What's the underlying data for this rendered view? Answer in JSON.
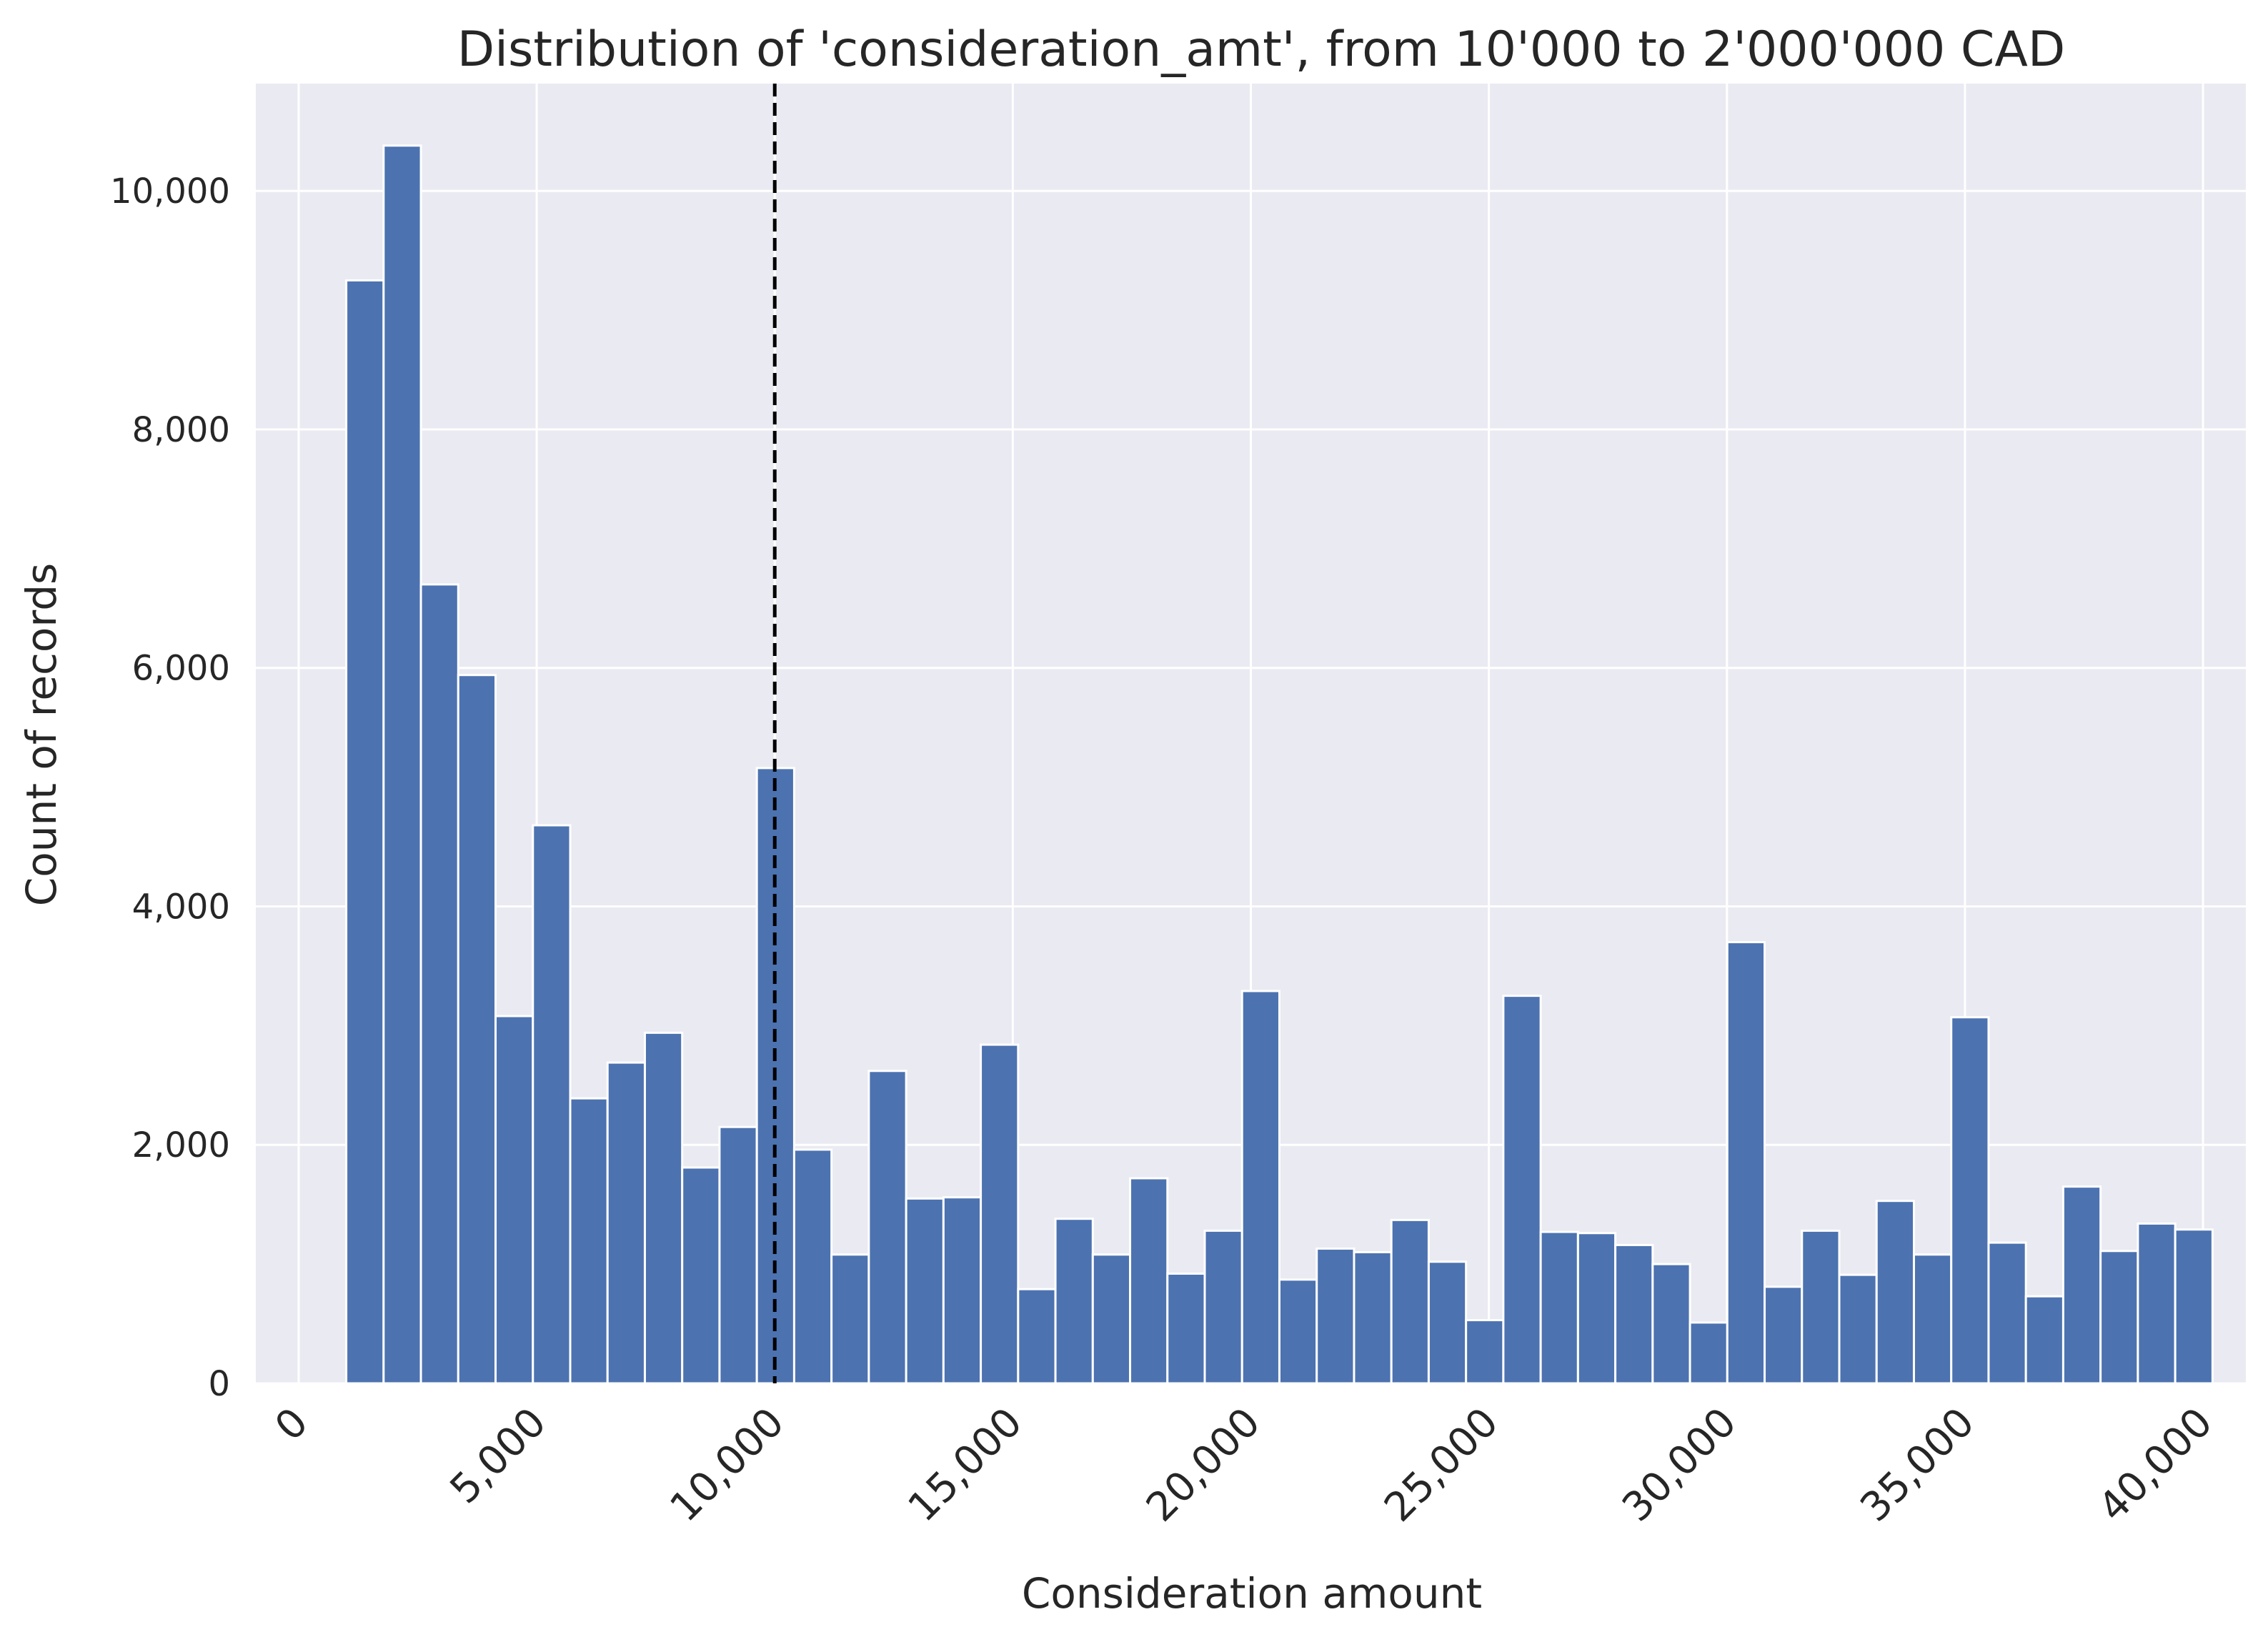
{
  "chart_data": {
    "type": "bar",
    "title": "Distribution of 'consideration_amt', from 10'000 to 2'000'000 CAD",
    "xlabel": "Consideration amount",
    "ylabel": "Count of records",
    "xlim": [
      -900,
      40900
    ],
    "ylim": [
      0,
      10900
    ],
    "xticks": [
      0,
      5000,
      10000,
      15000,
      20000,
      25000,
      30000,
      35000,
      40000
    ],
    "xtick_labels": [
      "0",
      "5,000",
      "10,000",
      "15,000",
      "20,000",
      "25,000",
      "30,000",
      "35,000",
      "40,000"
    ],
    "yticks": [
      0,
      2000,
      4000,
      6000,
      8000,
      10000
    ],
    "ytick_labels": [
      "0",
      "2,000",
      "4,000",
      "6,000",
      "8,000",
      "10,000"
    ],
    "bin_start": 1000,
    "bin_width": 784,
    "values": [
      9250,
      10380,
      6700,
      5940,
      3080,
      4680,
      2390,
      2690,
      2940,
      1810,
      2150,
      5160,
      1960,
      1080,
      2620,
      1550,
      1560,
      2840,
      790,
      1380,
      1080,
      1720,
      920,
      1280,
      3290,
      870,
      1130,
      1100,
      1370,
      1020,
      530,
      3250,
      1270,
      1260,
      1160,
      1000,
      510,
      3700,
      810,
      1280,
      910,
      1530,
      1080,
      3070,
      1180,
      730,
      1650,
      1110,
      1340,
      1290
    ],
    "reference_line_x": 10000,
    "bar_color": "#4c72b0",
    "background_color": "#eaeaf2",
    "grid": true
  }
}
